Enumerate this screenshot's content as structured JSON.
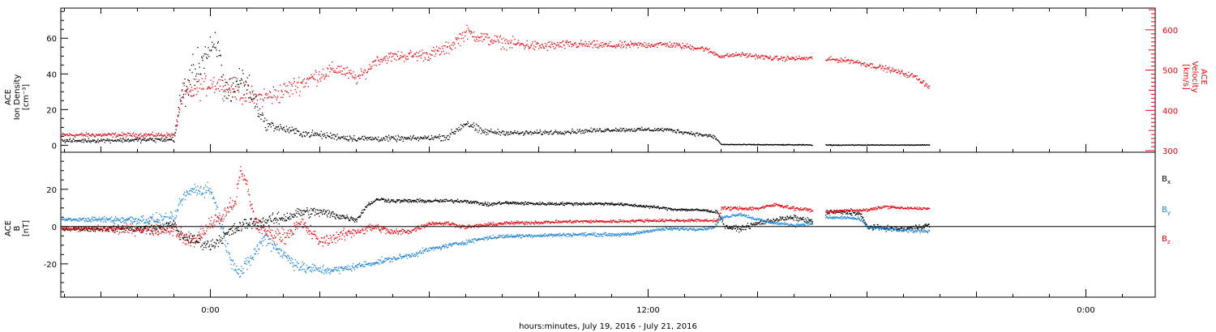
{
  "chart_data": [
    {
      "type": "scatter",
      "panel": "top",
      "xlabel": "hours:minutes, July 19, 2016 - July 21, 2016",
      "x_tick_labels": [
        "0:00",
        "12:00",
        "0:00"
      ],
      "x_tick_hours": [
        0,
        12,
        24
      ],
      "xlim_hours": [
        -4.1,
        25.9
      ],
      "data_end_hour": 19.7,
      "left_axis": {
        "label_lines": [
          "ACE",
          "Ion Density",
          "[cm⁻³]"
        ],
        "ylim": [
          -3,
          76
        ],
        "ticks": [
          0,
          20,
          40,
          60
        ],
        "color": "#000000"
      },
      "right_axis": {
        "label_lines": [
          "ACE",
          "Velocity",
          "[km/s]"
        ],
        "ylim": [
          300,
          650
        ],
        "ticks": [
          300,
          400,
          500,
          600
        ],
        "color": "#e8000b"
      },
      "series": [
        {
          "color": "#000000",
          "axis": "left",
          "segments": [
            [
              -4.1,
              2.7
            ],
            [
              -1.0,
              3.5
            ],
            [
              -0.8,
              28
            ],
            [
              -0.2,
              50
            ],
            [
              0.2,
              55
            ],
            [
              0.4,
              30
            ],
            [
              0.9,
              38
            ],
            [
              1.5,
              12
            ],
            [
              2.5,
              7
            ],
            [
              4.0,
              4
            ],
            [
              5.5,
              4
            ],
            [
              6.5,
              5
            ],
            [
              7.0,
              13
            ],
            [
              7.4,
              8
            ],
            [
              8.5,
              7
            ],
            [
              10.0,
              8
            ],
            [
              11.0,
              9
            ],
            [
              12.5,
              9
            ],
            [
              13.5,
              6
            ],
            [
              13.8,
              5
            ],
            [
              14.0,
              0.7
            ],
            [
              16.0,
              0.5
            ],
            [
              17.0,
              0.4
            ],
            [
              19.7,
              0.4
            ]
          ],
          "spread": [
            [
              -4.1,
              1.5
            ],
            [
              -1.0,
              2
            ],
            [
              -0.8,
              15
            ],
            [
              1.0,
              12
            ],
            [
              1.5,
              4
            ],
            [
              2.5,
              3
            ],
            [
              6.0,
              2
            ],
            [
              7.0,
              4
            ],
            [
              8.0,
              2
            ],
            [
              13.8,
              1.5
            ],
            [
              14.0,
              0.4
            ],
            [
              19.7,
              0.3
            ]
          ]
        },
        {
          "color": "#e8000b",
          "axis": "right",
          "segments": [
            [
              -4.1,
              340
            ],
            [
              -1.0,
              340
            ],
            [
              -0.8,
              435
            ],
            [
              0.0,
              470
            ],
            [
              0.5,
              460
            ],
            [
              1.2,
              430
            ],
            [
              1.8,
              440
            ],
            [
              2.5,
              470
            ],
            [
              3.0,
              490
            ],
            [
              3.5,
              505
            ],
            [
              4.0,
              480
            ],
            [
              4.3,
              500
            ],
            [
              4.5,
              525
            ],
            [
              5.0,
              535
            ],
            [
              6.0,
              540
            ],
            [
              6.5,
              555
            ],
            [
              7.0,
              595
            ],
            [
              7.5,
              580
            ],
            [
              8.0,
              570
            ],
            [
              9.0,
              560
            ],
            [
              10.0,
              565
            ],
            [
              11.0,
              562
            ],
            [
              12.5,
              565
            ],
            [
              13.5,
              555
            ],
            [
              14.0,
              535
            ],
            [
              14.5,
              540
            ],
            [
              15.5,
              530
            ],
            [
              16.5,
              530
            ],
            [
              17.5,
              525
            ],
            [
              18.5,
              505
            ],
            [
              19.3,
              485
            ],
            [
              19.7,
              460
            ]
          ],
          "spread": [
            [
              -4.1,
              8
            ],
            [
              -1.0,
              8
            ],
            [
              -0.8,
              40
            ],
            [
              1.5,
              40
            ],
            [
              3.0,
              30
            ],
            [
              4.5,
              18
            ],
            [
              7.0,
              25
            ],
            [
              10.0,
              15
            ],
            [
              13.5,
              10
            ],
            [
              14.0,
              8
            ],
            [
              19.7,
              10
            ]
          ]
        }
      ],
      "gaps_hours": [
        [
          16.5,
          16.85
        ]
      ]
    },
    {
      "type": "scatter",
      "panel": "bottom",
      "left_axis": {
        "label_lines": [
          "ACE",
          "B",
          "[nT]"
        ],
        "ylim": [
          -37,
          39
        ],
        "ticks": [
          -20,
          0,
          20
        ]
      },
      "zero_line": true,
      "legend": [
        "Bx",
        "By",
        "Bz"
      ],
      "legend_placement": "right",
      "series": [
        {
          "name": "Bx",
          "color": "#000000",
          "segments": [
            [
              -4.1,
              -1
            ],
            [
              -1.5,
              -1
            ],
            [
              -1.0,
              1
            ],
            [
              -0.8,
              -5
            ],
            [
              -0.3,
              -8
            ],
            [
              0.0,
              -10
            ],
            [
              0.5,
              -3
            ],
            [
              1.0,
              2
            ],
            [
              1.5,
              3
            ],
            [
              2.0,
              5
            ],
            [
              2.5,
              8
            ],
            [
              3.0,
              8
            ],
            [
              3.5,
              6
            ],
            [
              4.0,
              4
            ],
            [
              4.3,
              12
            ],
            [
              4.6,
              15
            ],
            [
              5.0,
              14
            ],
            [
              6.0,
              14
            ],
            [
              7.0,
              14
            ],
            [
              7.6,
              12
            ],
            [
              8.0,
              13
            ],
            [
              9.0,
              12.5
            ],
            [
              10.0,
              12.5
            ],
            [
              11.0,
              12.5
            ],
            [
              12.0,
              11
            ],
            [
              12.7,
              9.5
            ],
            [
              13.5,
              9
            ],
            [
              13.9,
              8
            ],
            [
              14.1,
              0
            ],
            [
              14.5,
              -1
            ],
            [
              15.0,
              2
            ],
            [
              15.5,
              4
            ],
            [
              16.0,
              5
            ],
            [
              16.5,
              3
            ],
            [
              16.9,
              8
            ],
            [
              17.5,
              8
            ],
            [
              17.8,
              7
            ],
            [
              18.0,
              0
            ],
            [
              19.0,
              -1
            ],
            [
              19.7,
              1
            ]
          ],
          "spread": [
            [
              -4.1,
              1
            ],
            [
              -1.0,
              4
            ],
            [
              1.0,
              5
            ],
            [
              3.0,
              4
            ],
            [
              4.3,
              1.5
            ],
            [
              13.9,
              1
            ],
            [
              14.1,
              2
            ],
            [
              19.7,
              2
            ]
          ]
        },
        {
          "name": "By",
          "color": "#1a82d6",
          "segments": [
            [
              -4.1,
              4
            ],
            [
              -1.0,
              4
            ],
            [
              -0.8,
              15
            ],
            [
              -0.5,
              20
            ],
            [
              0.0,
              20
            ],
            [
              0.2,
              8
            ],
            [
              0.5,
              -15
            ],
            [
              0.8,
              -25
            ],
            [
              1.0,
              -20
            ],
            [
              1.5,
              -5
            ],
            [
              2.0,
              -15
            ],
            [
              2.5,
              -22
            ],
            [
              3.0,
              -23
            ],
            [
              3.5,
              -23
            ],
            [
              4.0,
              -21
            ],
            [
              4.5,
              -19
            ],
            [
              5.0,
              -17
            ],
            [
              5.5,
              -15
            ],
            [
              6.0,
              -12
            ],
            [
              6.5,
              -10
            ],
            [
              7.0,
              -8
            ],
            [
              7.5,
              -6
            ],
            [
              8.0,
              -5
            ],
            [
              9.0,
              -4.5
            ],
            [
              10.0,
              -4
            ],
            [
              11.0,
              -4
            ],
            [
              11.5,
              -4
            ],
            [
              12.0,
              -2
            ],
            [
              12.5,
              -1
            ],
            [
              13.5,
              -1
            ],
            [
              13.8,
              0
            ],
            [
              14.0,
              5
            ],
            [
              14.5,
              7
            ],
            [
              15.0,
              4
            ],
            [
              15.5,
              2
            ],
            [
              16.0,
              1
            ],
            [
              16.5,
              2
            ],
            [
              16.9,
              5
            ],
            [
              17.5,
              5
            ],
            [
              17.8,
              4
            ],
            [
              18.0,
              0
            ],
            [
              19.0,
              -2
            ],
            [
              19.7,
              -2
            ]
          ],
          "spread": [
            [
              -4.1,
              0.8
            ],
            [
              -1.0,
              5
            ],
            [
              1.5,
              6
            ],
            [
              4.0,
              2.5
            ],
            [
              8.0,
              1.5
            ],
            [
              13.8,
              1.2
            ],
            [
              19.7,
              1.5
            ]
          ]
        },
        {
          "name": "Bz",
          "color": "#e8000b",
          "segments": [
            [
              -4.1,
              -1
            ],
            [
              -1.0,
              -1
            ],
            [
              -0.8,
              -5
            ],
            [
              -0.5,
              -8
            ],
            [
              0.0,
              2
            ],
            [
              0.3,
              5
            ],
            [
              0.7,
              15
            ],
            [
              0.8,
              30
            ],
            [
              1.0,
              22
            ],
            [
              1.2,
              3
            ],
            [
              1.5,
              -3
            ],
            [
              2.0,
              -5
            ],
            [
              2.5,
              2
            ],
            [
              3.0,
              -8
            ],
            [
              3.5,
              -5
            ],
            [
              4.0,
              -2
            ],
            [
              4.5,
              0
            ],
            [
              5.0,
              -3
            ],
            [
              5.5,
              -2
            ],
            [
              6.0,
              2
            ],
            [
              6.5,
              2
            ],
            [
              7.0,
              0
            ],
            [
              8.0,
              2
            ],
            [
              9.0,
              2.5
            ],
            [
              10.0,
              3
            ],
            [
              11.0,
              3
            ],
            [
              12.0,
              3.5
            ],
            [
              13.0,
              3.5
            ],
            [
              13.9,
              3.5
            ],
            [
              14.0,
              10
            ],
            [
              15.0,
              10
            ],
            [
              15.5,
              12
            ],
            [
              16.0,
              10
            ],
            [
              16.5,
              9
            ],
            [
              16.9,
              8
            ],
            [
              17.5,
              9
            ],
            [
              18.0,
              9
            ],
            [
              18.5,
              11
            ],
            [
              19.0,
              10
            ],
            [
              19.7,
              10
            ]
          ],
          "spread": [
            [
              -4.1,
              1
            ],
            [
              -1.0,
              6
            ],
            [
              1.5,
              6
            ],
            [
              4.0,
              4
            ],
            [
              6.0,
              1.5
            ],
            [
              13.9,
              1
            ],
            [
              14.0,
              1.5
            ],
            [
              19.7,
              1
            ]
          ]
        }
      ],
      "gaps_hours": [
        [
          16.5,
          16.85
        ]
      ]
    }
  ]
}
